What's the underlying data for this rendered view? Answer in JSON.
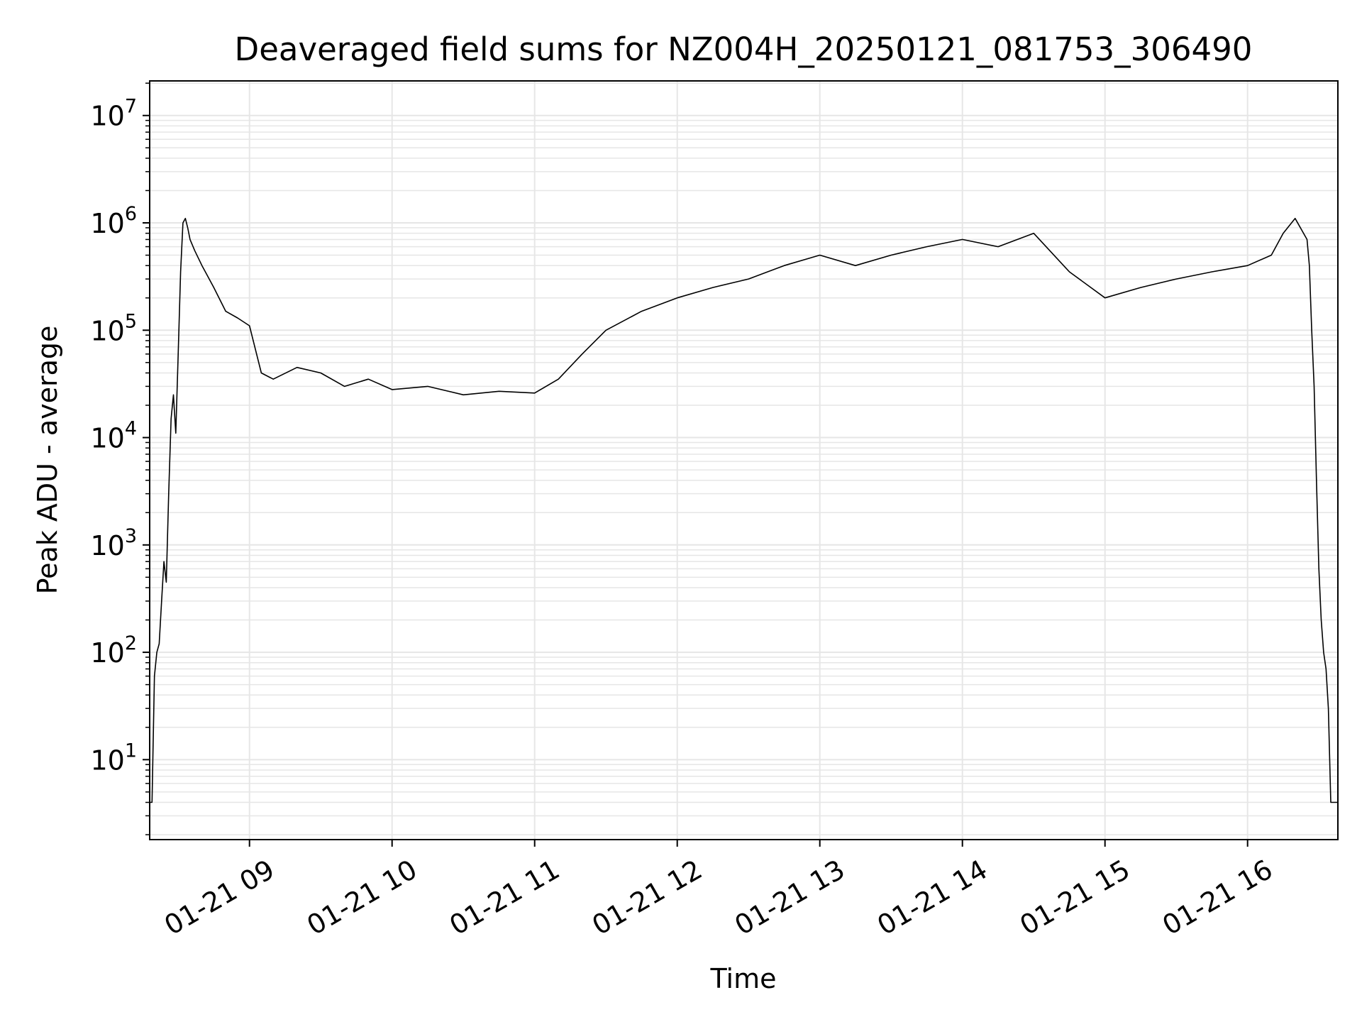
{
  "chart_data": {
    "type": "line",
    "title": "Deaveraged field sums for NZ004H_20250121_081753_306490",
    "xlabel": "Time",
    "ylabel": "Peak ADU - average",
    "yscale": "log",
    "ylim": [
      1.8,
      21000000
    ],
    "xlim": [
      "2025-01-21 08:18",
      "2025-01-21 16:38"
    ],
    "x_ticks": [
      "2025-01-21 09:00",
      "2025-01-21 10:00",
      "2025-01-21 11:00",
      "2025-01-21 12:00",
      "2025-01-21 13:00",
      "2025-01-21 14:00",
      "2025-01-21 15:00",
      "2025-01-21 16:00"
    ],
    "x_tick_labels": [
      "01-21 09",
      "01-21 10",
      "01-21 11",
      "01-21 12",
      "01-21 13",
      "01-21 14",
      "01-21 15",
      "01-21 16"
    ],
    "y_ticks": [
      10,
      100,
      1000,
      10000,
      100000,
      1000000,
      10000000
    ],
    "y_tick_labels": [
      {
        "base": "10",
        "exp": "1"
      },
      {
        "base": "10",
        "exp": "2"
      },
      {
        "base": "10",
        "exp": "3"
      },
      {
        "base": "10",
        "exp": "4"
      },
      {
        "base": "10",
        "exp": "5"
      },
      {
        "base": "10",
        "exp": "6"
      },
      {
        "base": "10",
        "exp": "7"
      }
    ],
    "grid": true,
    "line_color": "#000000",
    "grid_color": "#e6e6e6",
    "series": [
      {
        "x": [
          "2025-01-21 08:18",
          "2025-01-21 08:19",
          "2025-01-21 08:20",
          "2025-01-21 08:21",
          "2025-01-21 08:22",
          "2025-01-21 08:23",
          "2025-01-21 08:24",
          "2025-01-21 08:25",
          "2025-01-21 08:26",
          "2025-01-21 08:27",
          "2025-01-21 08:28",
          "2025-01-21 08:29",
          "2025-01-21 08:30",
          "2025-01-21 08:31",
          "2025-01-21 08:32",
          "2025-01-21 08:33",
          "2025-01-21 08:34",
          "2025-01-21 08:35",
          "2025-01-21 08:37",
          "2025-01-21 08:40",
          "2025-01-21 08:45",
          "2025-01-21 08:50",
          "2025-01-21 08:55",
          "2025-01-21 09:00",
          "2025-01-21 09:05",
          "2025-01-21 09:10",
          "2025-01-21 09:20",
          "2025-01-21 09:30",
          "2025-01-21 09:40",
          "2025-01-21 09:50",
          "2025-01-21 10:00",
          "2025-01-21 10:15",
          "2025-01-21 10:30",
          "2025-01-21 10:45",
          "2025-01-21 11:00",
          "2025-01-21 11:10",
          "2025-01-21 11:20",
          "2025-01-21 11:30",
          "2025-01-21 11:45",
          "2025-01-21 12:00",
          "2025-01-21 12:15",
          "2025-01-21 12:30",
          "2025-01-21 12:45",
          "2025-01-21 13:00",
          "2025-01-21 13:15",
          "2025-01-21 13:30",
          "2025-01-21 13:45",
          "2025-01-21 14:00",
          "2025-01-21 14:15",
          "2025-01-21 14:30",
          "2025-01-21 14:45",
          "2025-01-21 15:00",
          "2025-01-21 15:15",
          "2025-01-21 15:30",
          "2025-01-21 15:45",
          "2025-01-21 16:00",
          "2025-01-21 16:10",
          "2025-01-21 16:15",
          "2025-01-21 16:20",
          "2025-01-21 16:25",
          "2025-01-21 16:26",
          "2025-01-21 16:27",
          "2025-01-21 16:28",
          "2025-01-21 16:29",
          "2025-01-21 16:30",
          "2025-01-21 16:31",
          "2025-01-21 16:32",
          "2025-01-21 16:33",
          "2025-01-21 16:34",
          "2025-01-21 16:35",
          "2025-01-21 16:36",
          "2025-01-21 16:38"
        ],
        "y": [
          4,
          4,
          60,
          100,
          120,
          300,
          700,
          450,
          3000,
          15000,
          25000,
          11000,
          60000,
          350000,
          1000000,
          1100000,
          900000,
          700000,
          550000,
          400000,
          250000,
          150000,
          130000,
          110000,
          40000,
          35000,
          45000,
          40000,
          30000,
          35000,
          28000,
          30000,
          25000,
          27000,
          26000,
          35000,
          60000,
          100000,
          150000,
          200000,
          250000,
          300000,
          400000,
          500000,
          400000,
          500000,
          600000,
          700000,
          600000,
          800000,
          350000,
          200000,
          250000,
          300000,
          350000,
          400000,
          500000,
          800000,
          1100000,
          700000,
          400000,
          100000,
          30000,
          4000,
          600,
          200,
          100,
          70,
          30,
          4,
          4,
          4
        ]
      }
    ]
  }
}
